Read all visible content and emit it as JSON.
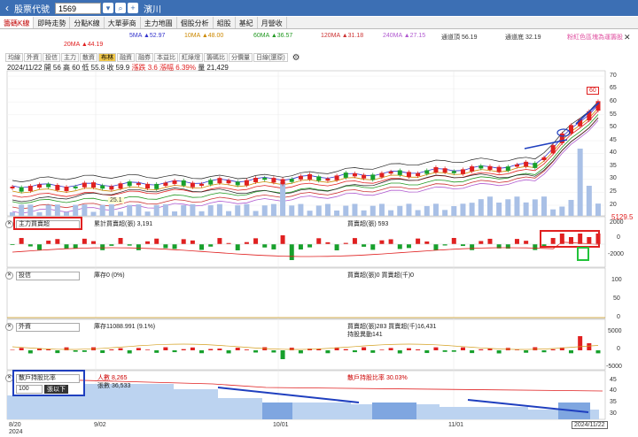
{
  "topbar": {
    "back_icon": "chevron-left-icon",
    "title": "股票代號",
    "code": "1569",
    "stock_name": "濱川"
  },
  "tabs": [
    "籌碼K線",
    "即時走勢",
    "分點K線",
    "大單夢商",
    "主力地圖",
    "個股分析",
    "組股",
    "基紀",
    "月營收"
  ],
  "ma_legend": {
    "ma20": "20MA ▲44.19",
    "ma5": "5MA ▲52.97",
    "ma10": "10MA ▲48.00",
    "ma60": "60MA ▲36.57",
    "ma120": "120MA ▲31.18",
    "ma240": "240MA ▲27.15",
    "top": "通道頂 56.19",
    "bottom": "通道底 32.19",
    "hint": "粉紅色區塊為運籌股"
  },
  "toolbar": {
    "buttons": [
      "均線",
      "外資",
      "投信",
      "主力",
      "散資",
      "布林",
      "融資",
      "融券",
      "本益比",
      "紅綠燈",
      "籌碼比",
      "分價量"
    ],
    "period": "日線(還原)"
  },
  "price_info": {
    "date": "2024/11/22",
    "open": "開 56",
    "high": "高 60",
    "low": "低 55.8",
    "close": "收 59.9",
    "change": "漲跌 3.6",
    "pct": "漲幅 6.39%",
    "volume": "量 21,429"
  },
  "main_chart": {
    "y_ticks": [
      "70",
      "65",
      "60",
      "55",
      "50",
      "45",
      "40",
      "35",
      "30",
      "25",
      "20"
    ],
    "high_label": "60",
    "low_label": "25.1",
    "vol_label": "5129.5"
  },
  "panel_main": {
    "select": "主力買賣超",
    "legend1": "累計買賣超(張) 3,191",
    "legend2": "買賣超(張) 593",
    "y_ticks": [
      "2000",
      "0",
      "-2000"
    ]
  },
  "panel_trust": {
    "select": "投信",
    "legend1": "庫存0 (0%)",
    "legend2": "買賣超(張)0  買賣超(千)0",
    "y_ticks": [
      "100",
      "50",
      "0"
    ]
  },
  "panel_foreign": {
    "select": "外資",
    "legend1": "庫存11088.991 (9.1%)",
    "legend2": "買賣超(張)283  買賣超(千)16,431",
    "legend3": "持股異動141",
    "y_ticks": [
      "5000",
      "0",
      "-5000"
    ]
  },
  "panel_holders": {
    "select": "散戶持股比率",
    "level": "100",
    "level_suffix": "張以下",
    "legend1": "人數 8,265",
    "legend2": "張數 36,533",
    "legend3": "散戶持股比率 30.03%",
    "y_ticks": [
      "45",
      "40",
      "35",
      "30"
    ]
  },
  "x_axis": {
    "labels": [
      "8/20",
      "9/02",
      "10/01",
      "11/01"
    ],
    "year": "2024",
    "current": "2024/11/22"
  },
  "colors": {
    "up": "#e02020",
    "down": "#17a02c",
    "accent": "#3c6fb4"
  }
}
